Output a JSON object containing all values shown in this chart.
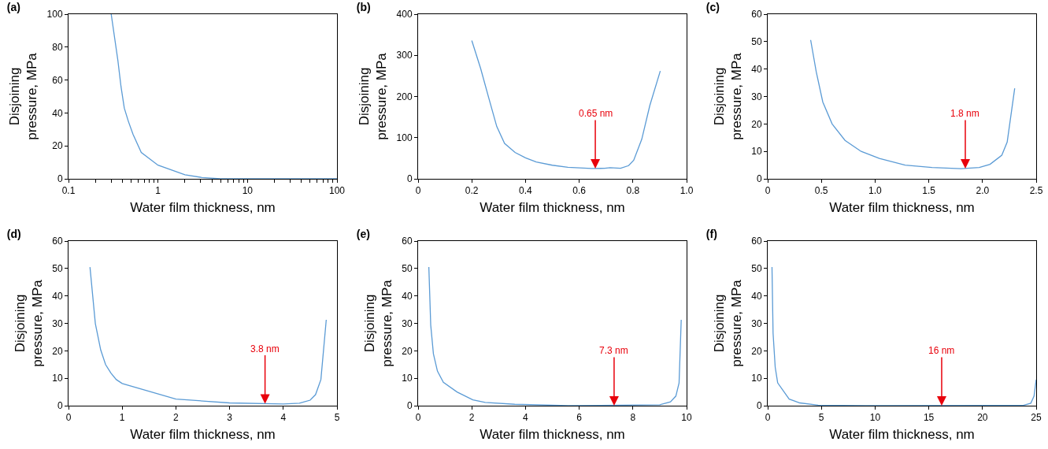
{
  "chart_data": [
    {
      "type": "line",
      "title": "(a)",
      "xlabel": "Water film thickness, nm",
      "ylabel": "Disjoining\npressure, MPa",
      "log": "x",
      "color": "#5b9bd5",
      "x": [
        0.3,
        0.356,
        0.386,
        0.42,
        0.466,
        0.526,
        0.65,
        1.0,
        2.0,
        3.1,
        5,
        10,
        100
      ],
      "values": [
        100,
        72,
        56,
        43,
        35,
        27,
        16,
        8.3,
        2.4,
        0.8,
        0,
        0,
        0
      ],
      "xlim": [
        0.1,
        100
      ],
      "xticks": [
        0.1,
        {
          "value": 0.2,
          "label": null
        },
        {
          "value": 0.3,
          "label": null
        },
        {
          "value": 0.4,
          "label": null
        },
        {
          "value": 0.5,
          "label": null
        },
        {
          "value": 0.6,
          "label": null
        },
        {
          "value": 0.7,
          "label": null
        },
        {
          "value": 0.8,
          "label": null
        },
        {
          "value": 0.9,
          "label": null
        },
        1,
        {
          "value": 2,
          "label": null
        },
        {
          "value": 3,
          "label": null
        },
        {
          "value": 4,
          "label": null
        },
        {
          "value": 5,
          "label": null
        },
        {
          "value": 6,
          "label": null
        },
        {
          "value": 7,
          "label": null
        },
        {
          "value": 8,
          "label": null
        },
        {
          "value": 9,
          "label": null
        },
        10,
        {
          "value": 20,
          "label": null
        },
        {
          "value": 30,
          "label": null
        },
        {
          "value": 40,
          "label": null
        },
        {
          "value": 50,
          "label": null
        },
        {
          "value": 60,
          "label": null
        },
        {
          "value": 70,
          "label": null
        },
        {
          "value": 80,
          "label": null
        },
        {
          "value": 90,
          "label": null
        },
        100
      ],
      "ylim": [
        0,
        100
      ],
      "yticks": [
        0,
        20,
        40,
        60,
        80,
        100
      ]
    },
    {
      "type": "line",
      "title": "(b)",
      "xlabel": "Water film thickness, nm",
      "ylabel": "Disjoining\npressure, MPa",
      "color": "#5b9bd5",
      "x": [
        0.2,
        0.233,
        0.263,
        0.293,
        0.322,
        0.361,
        0.4,
        0.44,
        0.5,
        0.558,
        0.646,
        0.695,
        0.715,
        0.754,
        0.784,
        0.803,
        0.833,
        0.863,
        0.902
      ],
      "values": [
        336,
        268,
        197,
        127,
        86,
        64,
        51,
        41,
        33,
        28,
        25,
        25.5,
        27,
        25.5,
        32,
        45,
        96,
        178,
        262
      ],
      "xlim": [
        0,
        1
      ],
      "xticks": [
        0,
        0.2,
        0.4,
        0.6,
        0.8,
        {
          "value": 1,
          "label": "1.0"
        }
      ],
      "ylim": [
        0,
        400
      ],
      "yticks": [
        0,
        100,
        200,
        300,
        400
      ],
      "annotations": [
        {
          "text": "0.65 nm",
          "x": 0.66,
          "y": 25
        }
      ]
    },
    {
      "type": "line",
      "title": "(c)",
      "xlabel": "Water film thickness, nm",
      "ylabel": "Disjoining\npressure, MPa",
      "color": "#5b9bd5",
      "x": [
        0.4,
        0.452,
        0.513,
        0.6,
        0.72,
        0.87,
        1.04,
        1.28,
        1.53,
        1.8,
        1.97,
        2.07,
        2.18,
        2.23,
        2.3
      ],
      "values": [
        50.6,
        39,
        28,
        20,
        14,
        10,
        7.4,
        5,
        4.1,
        3.7,
        4.1,
        5.3,
        8.6,
        13.4,
        33
      ],
      "xlim": [
        0,
        2.5
      ],
      "xticks": [
        0,
        0.5,
        {
          "value": 1,
          "label": "1.0"
        },
        1.5,
        {
          "value": 2,
          "label": "2.0"
        },
        2.5
      ],
      "ylim": [
        0,
        60
      ],
      "yticks": [
        0,
        10,
        20,
        30,
        40,
        50,
        60
      ],
      "annotations": [
        {
          "text": "1.8 nm",
          "x": 1.84,
          "y": 3.7
        }
      ]
    },
    {
      "type": "line",
      "title": "(d)",
      "xlabel": "Water film thickness, nm",
      "ylabel": "Disjoining\npressure, MPa",
      "color": "#5b9bd5",
      "x": [
        0.4,
        0.5,
        0.6,
        0.69,
        0.79,
        0.89,
        1.0,
        2.0,
        3.0,
        4.0,
        4.3,
        4.5,
        4.6,
        4.7,
        4.8
      ],
      "values": [
        50.5,
        29.9,
        20.3,
        15,
        11.9,
        9.5,
        8.1,
        2.4,
        1.0,
        0.6,
        0.9,
        2.0,
        4.0,
        9.5,
        31.3
      ],
      "xlim": [
        0,
        5
      ],
      "xticks": [
        0,
        1,
        2,
        3,
        4,
        5
      ],
      "ylim": [
        0,
        60
      ],
      "yticks": [
        0,
        10,
        20,
        30,
        40,
        50,
        60
      ],
      "annotations": [
        {
          "text": "3.8 nm",
          "x": 3.66,
          "y": 0.7
        }
      ]
    },
    {
      "type": "line",
      "title": "(e)",
      "xlabel": "Water film thickness, nm",
      "ylabel": "Disjoining\npressure, MPa",
      "color": "#5b9bd5",
      "x": [
        0.4,
        0.47,
        0.57,
        0.72,
        0.94,
        1.45,
        2.04,
        2.5,
        3.6,
        5.6,
        9.0,
        9.4,
        9.6,
        9.72,
        9.8
      ],
      "values": [
        50.5,
        29.4,
        18.9,
        12.6,
        8.5,
        5,
        2.1,
        1.2,
        0.5,
        0,
        0.3,
        1.4,
        3.5,
        8.3,
        31.3
      ],
      "xlim": [
        0,
        10
      ],
      "xticks": [
        0,
        2,
        4,
        6,
        8,
        10
      ],
      "ylim": [
        0,
        60
      ],
      "yticks": [
        0,
        10,
        20,
        30,
        40,
        50,
        60
      ],
      "annotations": [
        {
          "text": "7.3 nm",
          "x": 7.3,
          "y": 0
        }
      ]
    },
    {
      "type": "line",
      "title": "(f)",
      "xlabel": "Water film thickness, nm",
      "ylabel": "Disjoining\npressure, MPa",
      "color": "#5b9bd5",
      "x": [
        0.4,
        0.5,
        0.7,
        0.93,
        2.0,
        3.0,
        4.7,
        9.1,
        23.8,
        24.5,
        24.8,
        25
      ],
      "values": [
        50.5,
        26.5,
        14,
        8.3,
        2.4,
        1.0,
        0.2,
        0,
        0.1,
        0.9,
        3.5,
        9.5
      ],
      "xlim": [
        0,
        25
      ],
      "xticks": [
        0,
        5,
        10,
        15,
        20,
        25
      ],
      "ylim": [
        0,
        60
      ],
      "yticks": [
        0,
        10,
        20,
        30,
        40,
        50,
        60
      ],
      "annotations": [
        {
          "text": "16 nm",
          "x": 16.2,
          "y": 0
        }
      ]
    }
  ]
}
